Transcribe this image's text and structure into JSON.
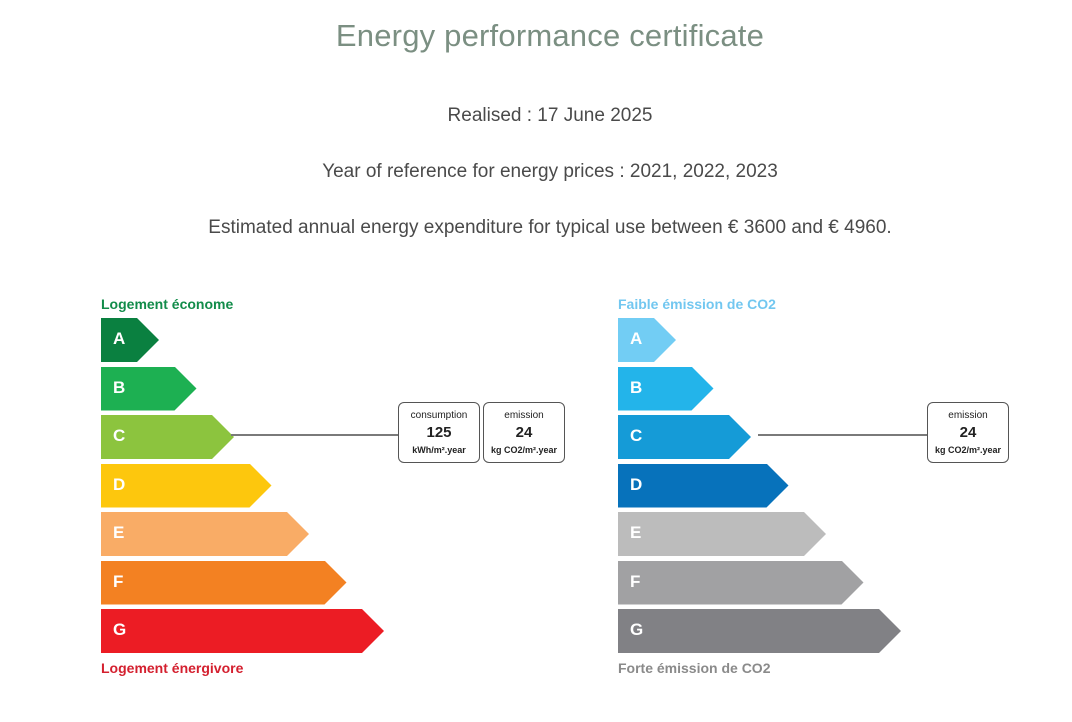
{
  "title": "Energy performance certificate",
  "realised": "Realised : 17 June 2025",
  "reference_years": "Year of reference for energy prices : 2021, 2022, 2023",
  "expenditure": "Estimated annual energy expenditure for typical use between € 3600 and € 4960.",
  "energy_scale": {
    "top_label": "Logement économe",
    "bottom_label": "Logement énergivore",
    "top_color": "#128c4a",
    "bottom_color": "#d4202f",
    "classes": [
      {
        "letter": "A",
        "color": "#0a8040"
      },
      {
        "letter": "B",
        "color": "#1db052"
      },
      {
        "letter": "C",
        "color": "#8cc43e"
      },
      {
        "letter": "D",
        "color": "#fdc70d"
      },
      {
        "letter": "E",
        "color": "#f9ac66"
      },
      {
        "letter": "F",
        "color": "#f38122"
      },
      {
        "letter": "G",
        "color": "#ec1c24"
      }
    ],
    "rating": "C",
    "consumption": {
      "label": "consumption",
      "value": "125",
      "unit": "kWh/m².year"
    },
    "emission": {
      "label": "emission",
      "value": "24",
      "unit": "kg CO2/m².year"
    }
  },
  "co2_scale": {
    "top_label": "Faible émission de CO2",
    "bottom_label": "Forte émission de CO2",
    "top_color": "#72c7f0",
    "bottom_color": "#8a8a8a",
    "classes": [
      {
        "letter": "A",
        "color": "#72cdf4"
      },
      {
        "letter": "B",
        "color": "#23b4ea"
      },
      {
        "letter": "C",
        "color": "#159bd7"
      },
      {
        "letter": "D",
        "color": "#0772bb"
      },
      {
        "letter": "E",
        "color": "#bcbcbc"
      },
      {
        "letter": "F",
        "color": "#a1a1a3"
      },
      {
        "letter": "G",
        "color": "#818185"
      }
    ],
    "rating": "C",
    "emission": {
      "label": "emission",
      "value": "24",
      "unit": "kg CO2/m².year"
    }
  }
}
